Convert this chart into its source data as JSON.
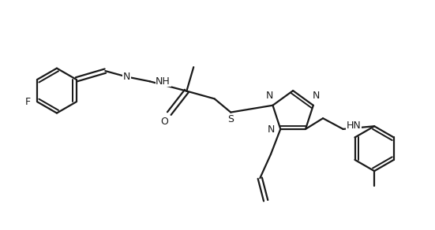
{
  "background_color": "#ffffff",
  "line_color": "#1a1a1a",
  "line_width": 1.6,
  "font_size": 9,
  "figsize": [
    5.51,
    2.92
  ],
  "dpi": 100,
  "xlim": [
    0,
    11
  ],
  "ylim": [
    0,
    5.84
  ]
}
